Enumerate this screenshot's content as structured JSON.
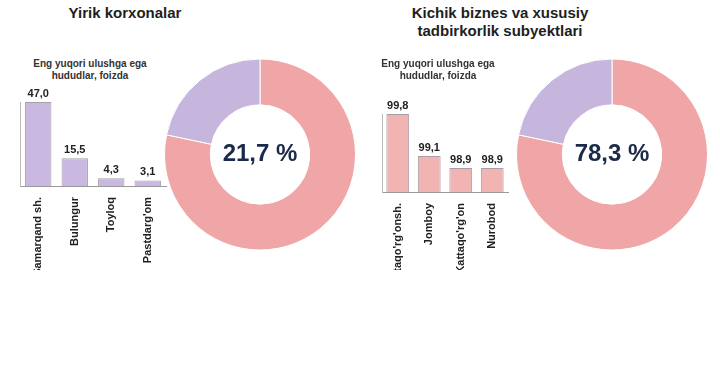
{
  "chart_data": [
    {
      "type": "bar",
      "title": "Yirik korxonalar",
      "subtitle": "Eng yuqori ulushga ega hududlar, foizda",
      "categories": [
        "Samarqand sh.",
        "Bulungur",
        "Toyloq",
        "Pastdarg'om"
      ],
      "values": [
        47.0,
        15.5,
        4.3,
        3.1
      ],
      "value_labels": [
        "47,0",
        "15,5",
        "4,3",
        "3,1"
      ],
      "color": "#c9b8e0",
      "ylim": [
        0,
        47
      ],
      "yticks": [],
      "grid": false,
      "data_labels": true,
      "tick_labels": "x"
    },
    {
      "type": "doughnut",
      "categories": [
        null,
        null
      ],
      "values": [
        78.3,
        21.7
      ],
      "colors": [
        "#f0a6a6",
        "#c6b6de"
      ],
      "data_labels": true,
      "value_labels": [
        null,
        "21,7 %"
      ]
    },
    {
      "type": "bar",
      "title": "Kichik biznes va xususiy tadbirkorlik subyektlari",
      "subtitle": "Eng yuqori ulushga ega hududlar, foizda",
      "categories": [
        "Kattaqo'rg'onsh.",
        "Jomboy",
        "Kattaqo'rg'on",
        "Nurobod"
      ],
      "values": [
        99.8,
        99.1,
        98.9,
        98.9
      ],
      "value_labels": [
        "99,8",
        "99,1",
        "98,9",
        "98,9"
      ],
      "color": "#f2b3b3",
      "ylim": [
        98.5,
        99.8
      ],
      "yticks": [],
      "grid": false,
      "data_labels": true,
      "tick_labels": "x"
    },
    {
      "type": "doughnut",
      "categories": [
        null,
        null
      ],
      "values": [
        78.3,
        21.7
      ],
      "colors": [
        "#f0a6a6",
        "#c6b6de"
      ],
      "data_labels": true,
      "value_labels": [
        "78,3 %",
        null
      ]
    }
  ]
}
